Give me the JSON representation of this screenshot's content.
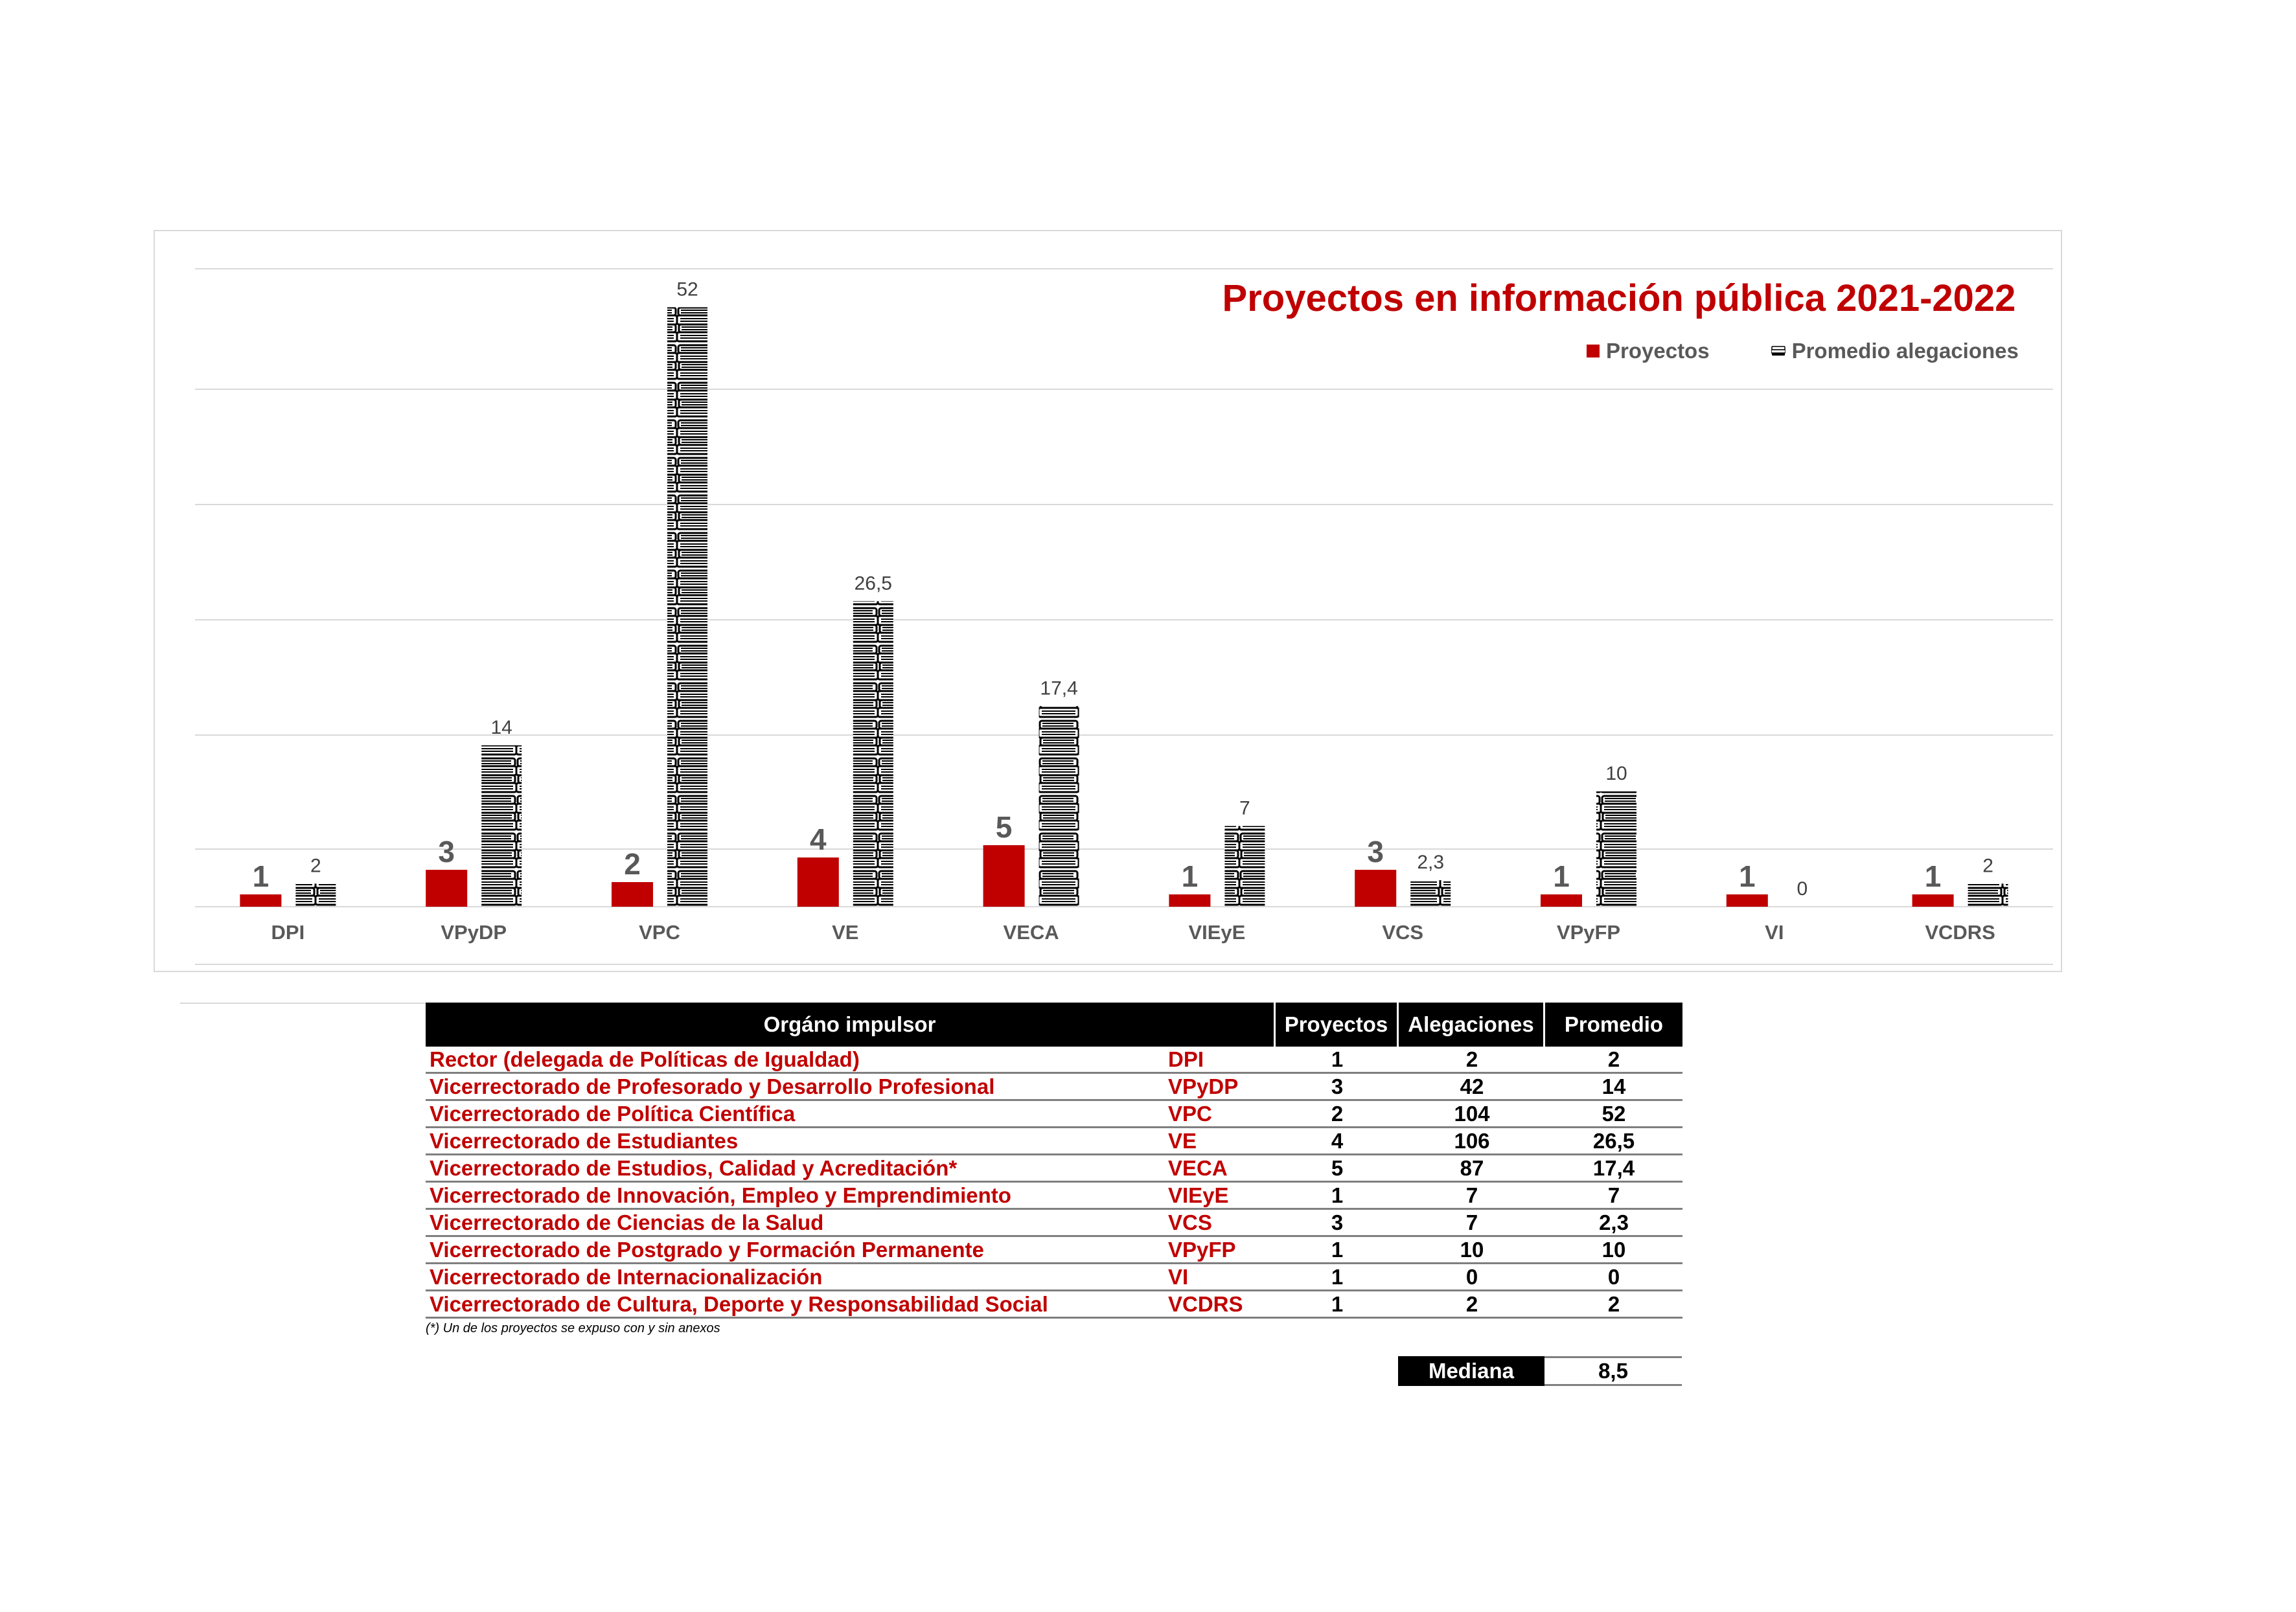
{
  "chart_data": {
    "type": "bar",
    "title": "Proyectos en información pública 2021-2022",
    "categories": [
      "DPI",
      "VPyDP",
      "VPC",
      "VE",
      "VECA",
      "VIEyE",
      "VCS",
      "VPyFP",
      "VI",
      "VCDRS"
    ],
    "series": [
      {
        "name": "Proyectos",
        "values": [
          1,
          3,
          2,
          4,
          5,
          1,
          3,
          1,
          1,
          1
        ],
        "labels": [
          "1",
          "3",
          "2",
          "4",
          "5",
          "1",
          "3",
          "1",
          "1",
          "1"
        ],
        "color": "#c00000"
      },
      {
        "name": "Promedio alegaciones",
        "values": [
          2,
          14,
          52,
          26.5,
          17.4,
          7,
          2.3,
          10,
          0,
          2
        ],
        "labels": [
          "2",
          "14",
          "52",
          "26,5",
          "17,4",
          "7",
          "2,3",
          "10",
          "0",
          "2"
        ],
        "color": "#000000",
        "marker": "books-stack-icon"
      }
    ],
    "xlabel": "",
    "ylabel": "",
    "gridlines": true,
    "legend_position": "top-right"
  },
  "table": {
    "headers": {
      "organ": "Orgáno impulsor",
      "projects": "Proyectos",
      "allegations": "Alegaciones",
      "average": "Promedio"
    },
    "rows": [
      {
        "organ": "Rector (delegada de Políticas de Igualdad)",
        "abbr": "DPI",
        "projects": "1",
        "allegations": "2",
        "average": "2"
      },
      {
        "organ": "Vicerrectorado de Profesorado y Desarrollo Profesional",
        "abbr": "VPyDP",
        "projects": "3",
        "allegations": "42",
        "average": "14"
      },
      {
        "organ": "Vicerrectorado de Política Científica",
        "abbr": "VPC",
        "projects": "2",
        "allegations": "104",
        "average": "52"
      },
      {
        "organ": "Vicerrectorado de Estudiantes",
        "abbr": "VE",
        "projects": "4",
        "allegations": "106",
        "average": "26,5"
      },
      {
        "organ": "Vicerrectorado de Estudios, Calidad y Acreditación*",
        "abbr": "VECA",
        "projects": "5",
        "allegations": "87",
        "average": "17,4"
      },
      {
        "organ": "Vicerrectorado de Innovación, Empleo y Emprendimiento",
        "abbr": "VIEyE",
        "projects": "1",
        "allegations": "7",
        "average": "7"
      },
      {
        "organ": "Vicerrectorado de Ciencias de la Salud",
        "abbr": "VCS",
        "projects": "3",
        "allegations": "7",
        "average": "2,3"
      },
      {
        "organ": "Vicerrectorado de Postgrado y Formación Permanente",
        "abbr": "VPyFP",
        "projects": "1",
        "allegations": "10",
        "average": "10"
      },
      {
        "organ": "Vicerrectorado de Internacionalización",
        "abbr": "VI",
        "projects": "1",
        "allegations": "0",
        "average": "0"
      },
      {
        "organ": "Vicerrectorado de Cultura, Deporte y Responsabilidad Social",
        "abbr": "VCDRS",
        "projects": "1",
        "allegations": "2",
        "average": "2"
      }
    ],
    "footnote": "(*) Un de los proyectos se expuso con y sin anexos",
    "median_label": "Mediana",
    "median_value": "8,5"
  }
}
